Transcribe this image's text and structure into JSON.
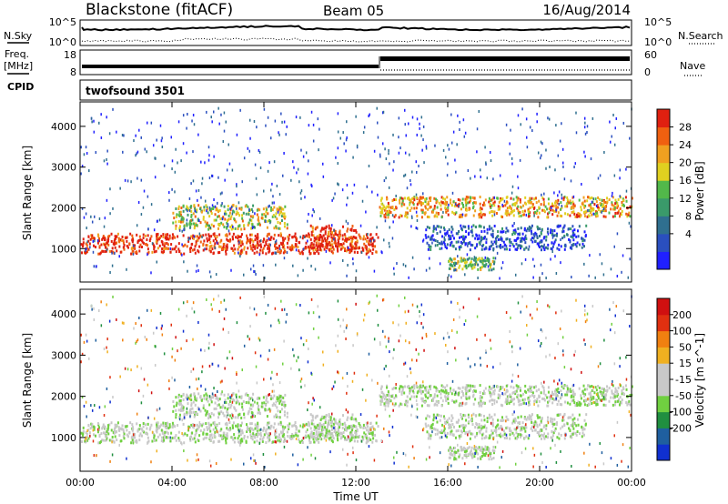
{
  "header": {
    "station": "Blackstone (fitACF)",
    "beam": "Beam 05",
    "date": "16/Aug/2014"
  },
  "nsky_panel": {
    "left_label": "N.Sky",
    "left_ticks": [
      "10^5",
      "10^0"
    ],
    "right_ticks": [
      "10^5",
      "10^0"
    ],
    "right_label": "N.Search"
  },
  "freq_panel": {
    "left_label_line1": "Freq.",
    "left_label_line2": "[MHz]",
    "left_ticks": [
      "18",
      "8"
    ],
    "right_ticks": [
      "60",
      "0"
    ],
    "right_label": "Nave"
  },
  "cpid_panel": {
    "label": "CPID",
    "program": "twofsound 3501"
  },
  "colors": {
    "power_scale": [
      "#2020ff",
      "#2a4fbf",
      "#2f6f8f",
      "#3a9a6a",
      "#52b84a",
      "#e0d020",
      "#f0a020",
      "#f06010",
      "#e02010"
    ],
    "velocity_scale": [
      "#1030d0",
      "#1f5f9f",
      "#208f40",
      "#70d040",
      "#c8c8c8",
      "#c8c8c8",
      "#f0b020",
      "#f08010",
      "#e03010",
      "#d01010"
    ]
  },
  "chart_data": [
    {
      "type": "heatmap",
      "name": "power_rti",
      "x_unit": "hours UT",
      "xlim": [
        0,
        24
      ],
      "x_ticks": [
        0,
        4,
        8,
        12,
        16,
        20,
        24
      ],
      "x_tick_labels": [
        "00:00",
        "04:00",
        "08:00",
        "12:00",
        "16:00",
        "20:00",
        "00:00"
      ],
      "ylabel": "Slant Range [km]",
      "ylim": [
        180,
        4600
      ],
      "y_ticks": [
        1000,
        2000,
        3000,
        4000
      ],
      "y_tick_labels": [
        "1000",
        "2000",
        "3000",
        "4000"
      ],
      "colorbar_label": "Power [dB]",
      "colorbar_ticks": [
        "28",
        "24",
        "20",
        "16",
        "12",
        "8",
        "4"
      ],
      "scatter_bands": [
        {
          "t": [
            0,
            13
          ],
          "r": [
            900,
            1400
          ],
          "level": 8
        },
        {
          "t": [
            4,
            9
          ],
          "r": [
            1500,
            2100
          ],
          "level": 5
        },
        {
          "t": [
            13,
            24
          ],
          "r": [
            1800,
            2300
          ],
          "level": 6
        },
        {
          "t": [
            15,
            22
          ],
          "r": [
            1000,
            1600
          ],
          "level": 1
        },
        {
          "t": [
            16,
            18
          ],
          "r": [
            500,
            800
          ],
          "level": 4
        },
        {
          "t": [
            10,
            12
          ],
          "r": [
            1000,
            1600
          ],
          "level": 8
        }
      ]
    },
    {
      "type": "heatmap",
      "name": "velocity_rti",
      "x_unit": "hours UT",
      "xlim": [
        0,
        24
      ],
      "x_ticks": [
        0,
        4,
        8,
        12,
        16,
        20,
        24
      ],
      "x_tick_labels": [
        "00:00",
        "04:00",
        "08:00",
        "12:00",
        "16:00",
        "20:00",
        "00:00"
      ],
      "xlabel": "Time UT",
      "ylabel": "Slant Range [km]",
      "ylim": [
        180,
        4600
      ],
      "y_ticks": [
        1000,
        2000,
        3000,
        4000
      ],
      "y_tick_labels": [
        "1000",
        "2000",
        "3000",
        "4000"
      ],
      "colorbar_label": "Velocity [m s^-1]",
      "colorbar_ticks": [
        "200",
        "100",
        "50",
        "15",
        "-15",
        "-50",
        "-100",
        "-200"
      ]
    }
  ]
}
